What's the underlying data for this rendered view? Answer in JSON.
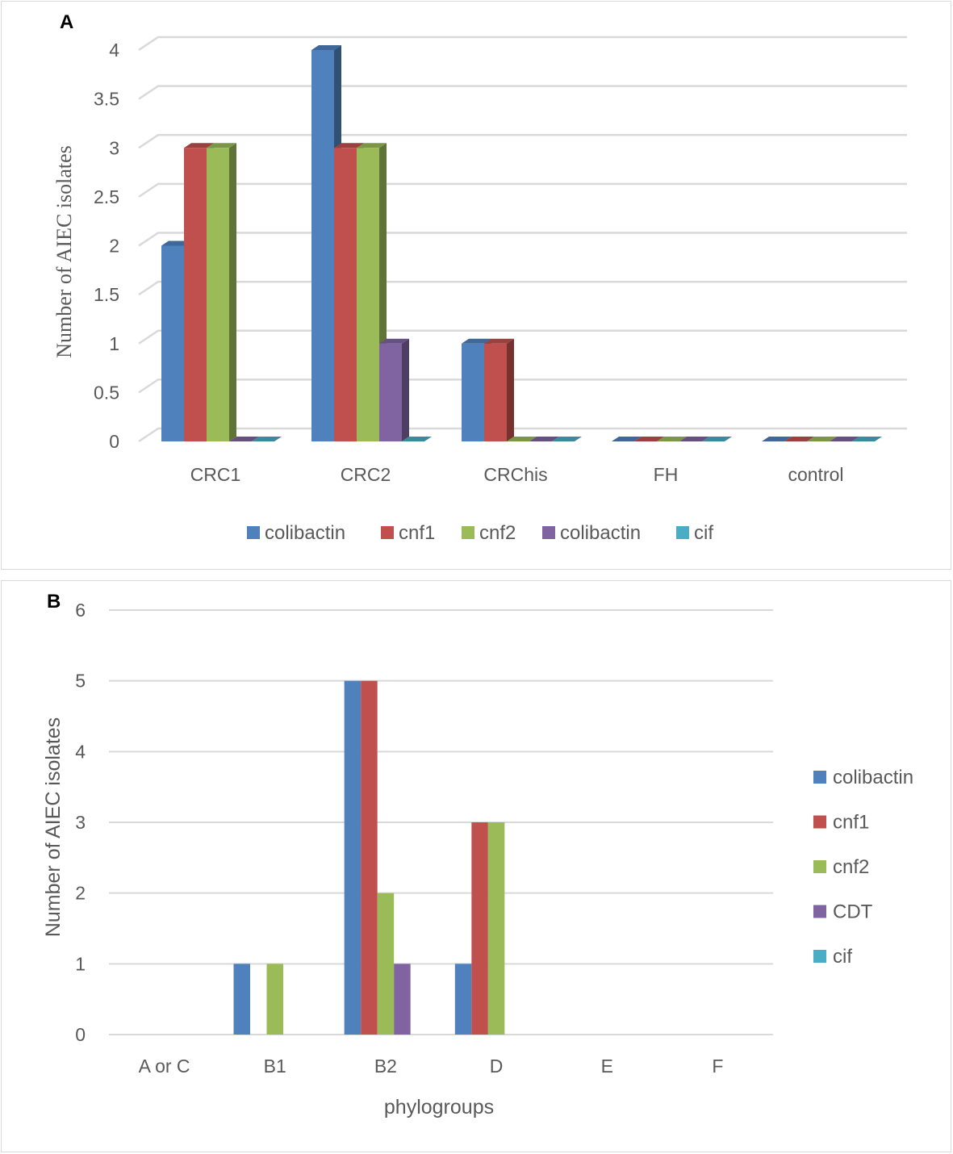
{
  "colors": {
    "blue": "#4f81bd",
    "red": "#c0504d",
    "green": "#9bbb59",
    "purple": "#8064a2",
    "teal": "#4bacc6",
    "grid": "#d9d9d9",
    "text": "#595959"
  },
  "chart_data": [
    {
      "panel_label": "A",
      "type": "bar",
      "style": "3d-clustered-column",
      "title": "",
      "xlabel": "",
      "ylabel": "Number of AIEC isolates",
      "ylim": [
        0,
        4
      ],
      "ytick_step": 0.5,
      "yticks": [
        "0",
        "0.5",
        "1",
        "1.5",
        "2",
        "2.5",
        "3",
        "3.5",
        "4"
      ],
      "grid": true,
      "legend_position": "bottom",
      "categories": [
        "CRC1",
        "CRC2",
        "CRChis",
        "FH",
        "control"
      ],
      "series": [
        {
          "name": "colibactin",
          "color": "#4f81bd",
          "values": [
            2,
            4,
            1,
            0,
            0
          ]
        },
        {
          "name": "cnf1",
          "color": "#c0504d",
          "values": [
            3,
            3,
            1,
            0,
            0
          ]
        },
        {
          "name": "cnf2",
          "color": "#9bbb59",
          "values": [
            3,
            3,
            0,
            0,
            0
          ]
        },
        {
          "name": "colibactin",
          "color": "#8064a2",
          "values": [
            0,
            1,
            0,
            0,
            0
          ]
        },
        {
          "name": "cif",
          "color": "#4bacc6",
          "values": [
            0,
            0,
            0,
            0,
            0
          ]
        }
      ]
    },
    {
      "panel_label": "B",
      "type": "bar",
      "style": "clustered-column",
      "title": "",
      "xlabel": "phylogroups",
      "ylabel": "Number of AIEC isolates",
      "ylim": [
        0,
        6
      ],
      "ytick_step": 1,
      "yticks": [
        "0",
        "1",
        "2",
        "3",
        "4",
        "5",
        "6"
      ],
      "grid": true,
      "legend_position": "right",
      "categories": [
        "A or C",
        "B1",
        "B2",
        "D",
        "E",
        "F"
      ],
      "series": [
        {
          "name": "colibactin",
          "color": "#4f81bd",
          "values": [
            0,
            1,
            5,
            1,
            0,
            0
          ]
        },
        {
          "name": "cnf1",
          "color": "#c0504d",
          "values": [
            0,
            0,
            5,
            3,
            0,
            0
          ]
        },
        {
          "name": "cnf2",
          "color": "#9bbb59",
          "values": [
            0,
            1,
            2,
            3,
            0,
            0
          ]
        },
        {
          "name": "CDT",
          "color": "#8064a2",
          "values": [
            0,
            0,
            1,
            0,
            0,
            0
          ]
        },
        {
          "name": "cif",
          "color": "#4bacc6",
          "values": [
            0,
            0,
            0,
            0,
            0,
            0
          ]
        }
      ]
    }
  ]
}
